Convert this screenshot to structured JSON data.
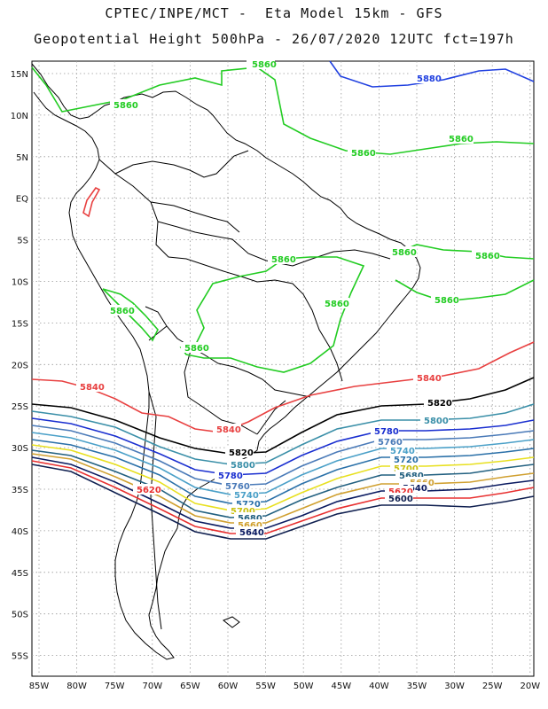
{
  "header": {
    "line1": "CPTEC/INPE/MCT -  Eta Model 15km - GFS",
    "line2": "Geopotential Height 500hPa - 26/07/2020 12UTC fct=197h"
  },
  "axes": {
    "lat_labels": [
      "15N",
      "10N",
      "5N",
      "EQ",
      "5S",
      "10S",
      "15S",
      "20S",
      "25S",
      "30S",
      "35S",
      "40S",
      "45S",
      "50S",
      "55S"
    ],
    "lon_labels": [
      "85W",
      "80W",
      "75W",
      "70W",
      "65W",
      "60W",
      "55W",
      "50W",
      "45W",
      "40W",
      "35W",
      "30W",
      "25W",
      "20W"
    ]
  },
  "contours": [
    {
      "level": "5880",
      "color": "#2040e0"
    },
    {
      "level": "5860",
      "color": "#22cc22"
    },
    {
      "level": "5840",
      "color": "#e84040"
    },
    {
      "level": "5820",
      "color": "#000000"
    },
    {
      "level": "5800",
      "color": "#3a8fa8"
    },
    {
      "level": "5780",
      "color": "#1a2fd0"
    },
    {
      "level": "5760",
      "color": "#4a7ab8"
    },
    {
      "level": "5740",
      "color": "#4aa0c8"
    },
    {
      "level": "5720",
      "color": "#2a70a8"
    },
    {
      "level": "5700",
      "color": "#e8e020"
    },
    {
      "level": "5680",
      "color": "#226080"
    },
    {
      "level": "5660",
      "color": "#d0a030"
    },
    {
      "level": "5640",
      "color": "#0a1a60"
    },
    {
      "level": "5620",
      "color": "#e83030"
    },
    {
      "level": "5600",
      "color": "#102050"
    }
  ],
  "colors": {
    "grid": "#999999",
    "coast": "#000000",
    "frame": "#000000"
  }
}
